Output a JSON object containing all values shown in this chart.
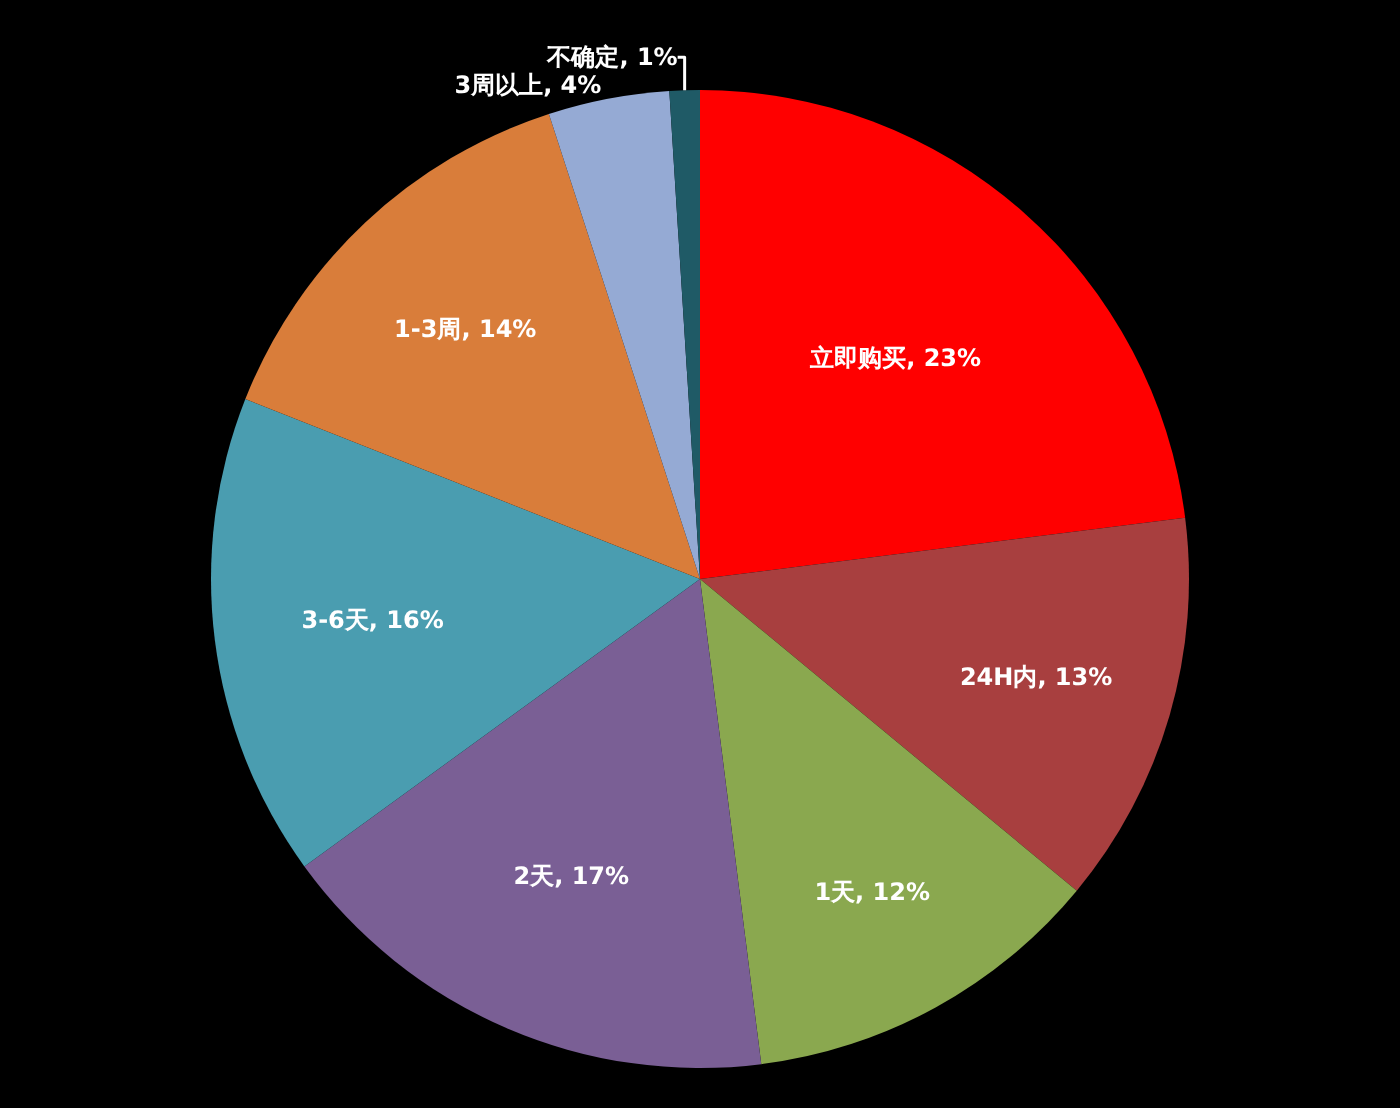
{
  "chart_data": {
    "type": "pie",
    "categories": [
      "立即购买",
      "24H内",
      "1天",
      "2天",
      "3-6天",
      "1-3周",
      "3周以上",
      "不确定"
    ],
    "values": [
      23,
      13,
      12,
      17,
      16,
      14,
      4,
      1
    ],
    "value_labels": [
      "23%",
      "13%",
      "12%",
      "17%",
      "16%",
      "14%",
      "4%",
      "1%"
    ],
    "colors": [
      "#ff0000",
      "#a83f3f",
      "#8aa84f",
      "#7a5f95",
      "#4a9db0",
      "#d97d3a",
      "#95aad4",
      "#1f5a66"
    ]
  }
}
